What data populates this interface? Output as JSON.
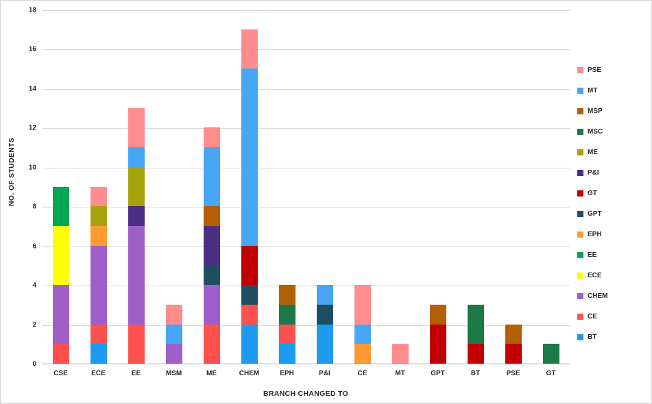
{
  "chart_data": {
    "type": "bar",
    "stacked": true,
    "title": "",
    "xlabel": "BRANCH CHANGED TO",
    "ylabel": "NO. OF STUDENTS",
    "ylim": [
      0,
      18
    ],
    "ytick_step": 2,
    "grid": true,
    "legend_position": "right",
    "gridline_color": "#d9d9d9",
    "axis_line_color": "#a6a6a6",
    "categories": [
      "CSE",
      "ECE",
      "EE",
      "MSM",
      "ME",
      "CHEM",
      "EPH",
      "P&I",
      "CE",
      "MT",
      "GPT",
      "BT",
      "PSE",
      "GT"
    ],
    "series": [
      {
        "name": "BT",
        "color": "#1e9bf0",
        "values": [
          0,
          1,
          0,
          0,
          0,
          2,
          1,
          2,
          0,
          0,
          0,
          0,
          0,
          0
        ]
      },
      {
        "name": "CE",
        "color": "#ff5050",
        "values": [
          1,
          1,
          2,
          0,
          2,
          1,
          1,
          0,
          0,
          0,
          0,
          0,
          0,
          0
        ]
      },
      {
        "name": "CHEM",
        "color": "#9e5fc8",
        "values": [
          3,
          4,
          5,
          1,
          2,
          0,
          0,
          0,
          0,
          0,
          0,
          0,
          0,
          0
        ]
      },
      {
        "name": "ECE",
        "color": "#ffff00",
        "values": [
          3,
          0,
          0,
          0,
          0,
          0,
          0,
          0,
          0,
          0,
          0,
          0,
          0,
          0
        ]
      },
      {
        "name": "EE",
        "color": "#00a651",
        "values": [
          2,
          0,
          0,
          0,
          0,
          0,
          0,
          0,
          0,
          0,
          0,
          0,
          0,
          0
        ]
      },
      {
        "name": "EPH",
        "color": "#ff9933",
        "values": [
          0,
          1,
          0,
          0,
          0,
          0,
          0,
          0,
          1,
          0,
          0,
          0,
          0,
          0
        ]
      },
      {
        "name": "GPT",
        "color": "#1f4e63",
        "values": [
          0,
          0,
          0,
          0,
          1,
          1,
          0,
          1,
          0,
          0,
          0,
          0,
          0,
          0
        ]
      },
      {
        "name": "GT",
        "color": "#c00000",
        "values": [
          0,
          0,
          0,
          0,
          0,
          2,
          0,
          0,
          0,
          0,
          2,
          1,
          1,
          0
        ]
      },
      {
        "name": "P&I",
        "color": "#4c2e83",
        "values": [
          0,
          0,
          1,
          0,
          2,
          0,
          0,
          0,
          0,
          0,
          0,
          0,
          0,
          0
        ]
      },
      {
        "name": "ME",
        "color": "#a7a30d",
        "values": [
          0,
          1,
          2,
          0,
          0,
          0,
          0,
          0,
          0,
          0,
          0,
          0,
          0,
          0
        ]
      },
      {
        "name": "MSC",
        "color": "#1b7a48",
        "values": [
          0,
          0,
          0,
          0,
          0,
          0,
          1,
          0,
          0,
          0,
          0,
          2,
          0,
          1
        ]
      },
      {
        "name": "MSP",
        "color": "#b45f06",
        "values": [
          0,
          0,
          0,
          0,
          1,
          0,
          1,
          0,
          0,
          0,
          1,
          0,
          1,
          0
        ]
      },
      {
        "name": "MT",
        "color": "#47a6f5",
        "values": [
          0,
          0,
          1,
          1,
          3,
          9,
          0,
          1,
          1,
          0,
          0,
          0,
          0,
          0
        ]
      },
      {
        "name": "PSE",
        "color": "#ff8d8d",
        "values": [
          0,
          1,
          2,
          1,
          1,
          2,
          0,
          0,
          2,
          1,
          0,
          0,
          0,
          0
        ]
      }
    ],
    "bar_totals": {
      "CSE": 9,
      "ECE": 9,
      "EE": 13,
      "MSM": 3,
      "ME": 12,
      "CHEM": 17,
      "EPH": 4,
      "P&I": 4,
      "CE": 4,
      "MT": 1,
      "GPT": 3,
      "BT": 3,
      "PSE": 2,
      "GT": 1
    }
  }
}
